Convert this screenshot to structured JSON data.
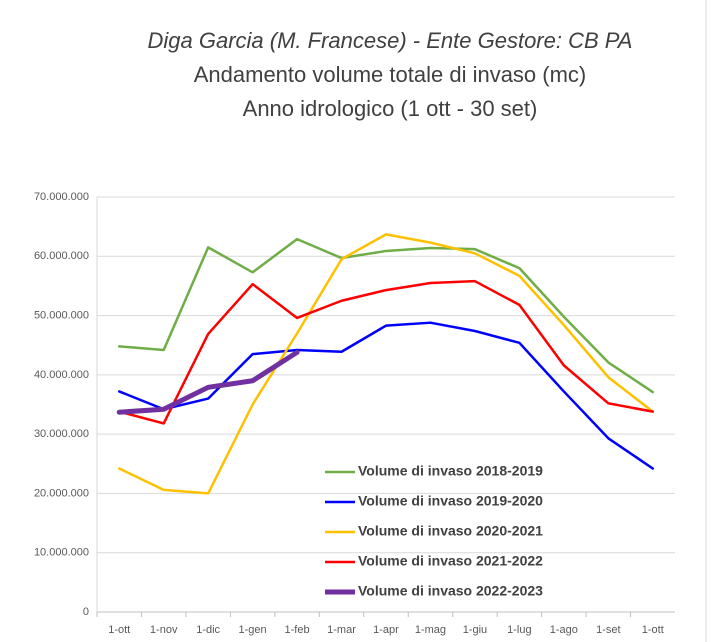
{
  "chart_data": {
    "type": "line",
    "title": "Diga Garcia (M. Francese) - Ente Gestore: CB PA",
    "subtitle": [
      "Andamento volume totale di invaso (mc)",
      "Anno idrologico (1 ott - 30 set)"
    ],
    "categories": [
      "1-ott",
      "1-nov",
      "1-dic",
      "1-gen",
      "1-feb",
      "1-mar",
      "1-apr",
      "1-mag",
      "1-giu",
      "1-lug",
      "1-ago",
      "1-set",
      "1-ott"
    ],
    "series": [
      {
        "name": "Volume di invaso 2018-2019",
        "color": "#70ad47",
        "width": 2.5,
        "values": [
          44800000,
          44200000,
          61500000,
          57300000,
          62900000,
          59700000,
          60900000,
          61400000,
          61200000,
          58000000,
          49800000,
          42100000,
          37100000
        ]
      },
      {
        "name": "Volume di invaso 2019-2020",
        "color": "#0000ff",
        "width": 2.5,
        "values": [
          37200000,
          34200000,
          36000000,
          43500000,
          44200000,
          43900000,
          48300000,
          48800000,
          47400000,
          45400000,
          37200000,
          29300000,
          24200000
        ]
      },
      {
        "name": "Volume di invaso 2020-2021",
        "color": "#ffc000",
        "width": 2.5,
        "values": [
          24200000,
          20600000,
          20000000,
          35000000,
          47000000,
          59500000,
          63700000,
          62300000,
          60500000,
          56700000,
          48400000,
          39600000,
          33800000
        ]
      },
      {
        "name": "Volume di invaso 2021-2022",
        "color": "#ff0000",
        "width": 2.5,
        "values": [
          33800000,
          31800000,
          46900000,
          55300000,
          49600000,
          52500000,
          54300000,
          55500000,
          55800000,
          51800000,
          41600000,
          35200000,
          33800000
        ]
      },
      {
        "name": "Volume di invaso 2022-2023",
        "color": "#7030a0",
        "width": 5,
        "values": [
          33700000,
          34200000,
          37900000,
          39000000,
          43800000,
          null,
          null,
          null,
          null,
          null,
          null,
          null,
          null
        ]
      }
    ],
    "ylim": [
      0,
      70000000
    ],
    "yticks": [
      0,
      {
        "value": 10000000,
        "label": "10.000.000"
      },
      {
        "value": 20000000,
        "label": "20.000.000"
      },
      {
        "value": 30000000,
        "label": "30.000.000"
      },
      {
        "value": 40000000,
        "label": "40.000.000"
      },
      {
        "value": 50000000,
        "label": "50.000.000"
      },
      {
        "value": 60000000,
        "label": "60.000.000"
      },
      {
        "value": 70000000,
        "label": "70.000.000"
      }
    ],
    "grid": true
  }
}
